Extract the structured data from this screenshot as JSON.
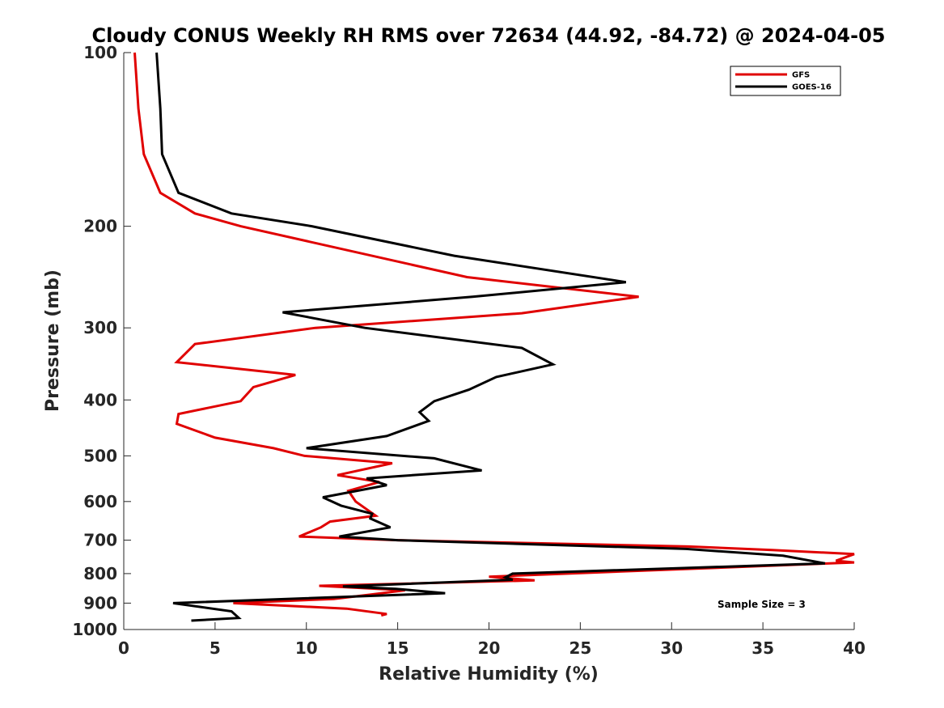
{
  "chart_data": {
    "type": "line",
    "title": "Cloudy CONUS Weekly RH RMS over 72634 (44.92, -84.72) @ 2024-04-05",
    "xlabel": "Relative Humidity (%)",
    "ylabel": "Pressure (mb)",
    "xlim": [
      0,
      40
    ],
    "ylim": [
      100,
      1000
    ],
    "yscale": "log",
    "y_reversed": true,
    "grid": false,
    "legend_position": "top-right",
    "xticks": [
      "0",
      "5",
      "10",
      "15",
      "20",
      "25",
      "30",
      "35",
      "40"
    ],
    "yticks": [
      "100",
      "200",
      "300",
      "400",
      "500",
      "600",
      "700",
      "800",
      "900",
      "1000"
    ],
    "annotation": "Sample Size = 3",
    "series": [
      {
        "name": "GFS",
        "color": "#e00000",
        "points": [
          [
            0.6,
            100
          ],
          [
            0.8,
            125
          ],
          [
            1.1,
            150
          ],
          [
            2.0,
            175
          ],
          [
            3.9,
            190
          ],
          [
            6.4,
            200
          ],
          [
            18.8,
            245
          ],
          [
            28.2,
            265
          ],
          [
            21.8,
            283
          ],
          [
            10.5,
            300
          ],
          [
            3.9,
            320
          ],
          [
            2.9,
            344
          ],
          [
            9.4,
            362
          ],
          [
            7.1,
            380
          ],
          [
            6.4,
            402
          ],
          [
            3.0,
            423
          ],
          [
            2.9,
            440
          ],
          [
            5.0,
            465
          ],
          [
            8.2,
            485
          ],
          [
            9.9,
            500
          ],
          [
            14.7,
            515
          ],
          [
            11.7,
            540
          ],
          [
            14.0,
            555
          ],
          [
            12.3,
            575
          ],
          [
            12.7,
            600
          ],
          [
            13.8,
            635
          ],
          [
            11.3,
            650
          ],
          [
            10.8,
            665
          ],
          [
            9.6,
            690
          ],
          [
            15.0,
            700
          ],
          [
            30.9,
            718
          ],
          [
            35.5,
            728
          ],
          [
            40.0,
            740
          ],
          [
            39.0,
            760
          ],
          [
            40.0,
            765
          ],
          [
            20.0,
            810
          ],
          [
            22.5,
            822
          ],
          [
            10.7,
            840
          ],
          [
            15.4,
            855
          ],
          [
            13.5,
            870
          ],
          [
            11.5,
            885
          ],
          [
            6.0,
            900
          ],
          [
            12.2,
            920
          ],
          [
            14.4,
            940
          ],
          [
            14.1,
            945
          ]
        ]
      },
      {
        "name": "GOES-16",
        "color": "#000000",
        "points": [
          [
            1.8,
            100
          ],
          [
            2.0,
            125
          ],
          [
            2.1,
            150
          ],
          [
            3.0,
            175
          ],
          [
            5.9,
            190
          ],
          [
            10.3,
            200
          ],
          [
            18.1,
            225
          ],
          [
            27.5,
            250
          ],
          [
            19.1,
            265
          ],
          [
            8.7,
            282
          ],
          [
            13.2,
            300
          ],
          [
            21.8,
            325
          ],
          [
            23.5,
            347
          ],
          [
            20.4,
            365
          ],
          [
            18.9,
            384
          ],
          [
            17.0,
            402
          ],
          [
            16.2,
            420
          ],
          [
            16.7,
            435
          ],
          [
            14.4,
            462
          ],
          [
            10.0,
            485
          ],
          [
            17.0,
            505
          ],
          [
            19.6,
            530
          ],
          [
            13.3,
            547
          ],
          [
            14.4,
            562
          ],
          [
            10.9,
            590
          ],
          [
            11.9,
            610
          ],
          [
            13.6,
            630
          ],
          [
            13.5,
            642
          ],
          [
            14.6,
            665
          ],
          [
            11.8,
            690
          ],
          [
            15.0,
            700
          ],
          [
            30.8,
            725
          ],
          [
            36.1,
            745
          ],
          [
            38.4,
            768
          ],
          [
            21.3,
            800
          ],
          [
            20.9,
            812
          ],
          [
            21.3,
            820
          ],
          [
            12.0,
            842
          ],
          [
            14.9,
            850
          ],
          [
            17.6,
            865
          ],
          [
            2.7,
            900
          ],
          [
            5.9,
            930
          ],
          [
            6.3,
            955
          ],
          [
            3.7,
            965
          ]
        ]
      }
    ]
  }
}
